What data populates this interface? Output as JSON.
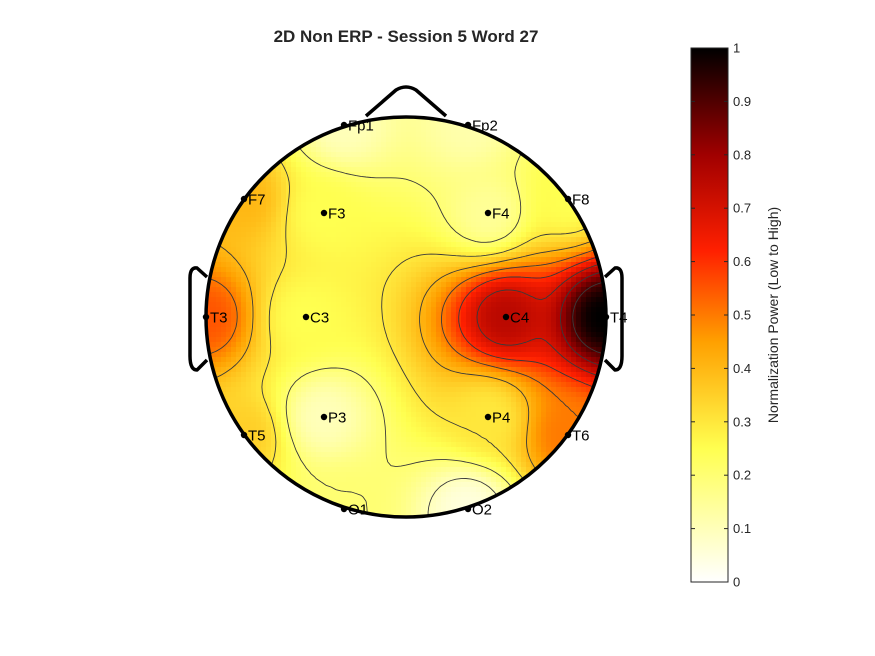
{
  "chart_data": {
    "type": "heatmap",
    "subtype": "eeg-topographic-map",
    "title": "2D Non ERP - Session 5 Word 27",
    "colormap": "hot (reversed): white = 0, yellow, red, black = 1",
    "colorbar": {
      "label": "Normalization Power (Low to High)",
      "range": [
        0,
        1
      ],
      "ticks": [
        "0",
        "0.1",
        "0.2",
        "0.3",
        "0.4",
        "0.5",
        "0.6",
        "0.7",
        "0.8",
        "0.9",
        "1"
      ]
    },
    "electrodes": [
      {
        "name": "Fp1",
        "value": 0.1
      },
      {
        "name": "Fp2",
        "value": 0.12
      },
      {
        "name": "F7",
        "value": 0.4
      },
      {
        "name": "F3",
        "value": 0.25
      },
      {
        "name": "F4",
        "value": 0.15
      },
      {
        "name": "F8",
        "value": 0.25
      },
      {
        "name": "T3",
        "value": 0.55
      },
      {
        "name": "C3",
        "value": 0.25
      },
      {
        "name": "C4",
        "value": 0.75
      },
      {
        "name": "T4",
        "value": 1.0
      },
      {
        "name": "T5",
        "value": 0.35
      },
      {
        "name": "P3",
        "value": 0.1
      },
      {
        "name": "P4",
        "value": 0.3
      },
      {
        "name": "T6",
        "value": 0.5
      },
      {
        "name": "O1",
        "value": 0.2
      },
      {
        "name": "O2",
        "value": 0.05
      }
    ]
  }
}
